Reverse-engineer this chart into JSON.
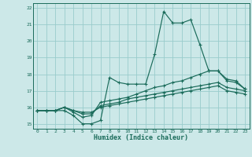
{
  "xlabel": "Humidex (Indice chaleur)",
  "bg_color": "#cce8e8",
  "grid_color": "#99cccc",
  "line_color": "#1a6b5a",
  "xlim": [
    -0.5,
    23.5
  ],
  "ylim": [
    14.7,
    22.3
  ],
  "xticks": [
    0,
    1,
    2,
    3,
    4,
    5,
    6,
    7,
    8,
    9,
    10,
    11,
    12,
    13,
    14,
    15,
    16,
    17,
    18,
    19,
    20,
    21,
    22,
    23
  ],
  "yticks": [
    15,
    16,
    17,
    18,
    19,
    20,
    21,
    22
  ],
  "lines": [
    {
      "x": [
        0,
        1,
        2,
        3,
        4,
        5,
        6,
        7,
        8,
        9,
        10,
        11,
        12,
        13,
        14,
        15,
        16,
        17,
        18,
        19,
        20,
        21,
        22,
        23
      ],
      "y": [
        15.8,
        15.8,
        15.8,
        15.8,
        15.5,
        15.0,
        15.0,
        15.2,
        17.8,
        17.5,
        17.4,
        17.4,
        17.4,
        19.2,
        21.8,
        21.1,
        21.1,
        21.3,
        19.8,
        18.2,
        18.2,
        17.6,
        17.5,
        17.1
      ]
    },
    {
      "x": [
        0,
        1,
        2,
        3,
        4,
        5,
        6,
        7,
        8,
        9,
        10,
        11,
        12,
        13,
        14,
        15,
        16,
        17,
        18,
        19,
        20,
        21,
        22,
        23
      ],
      "y": [
        15.8,
        15.8,
        15.8,
        16.0,
        15.7,
        15.4,
        15.5,
        16.3,
        16.4,
        16.5,
        16.6,
        16.8,
        17.0,
        17.2,
        17.3,
        17.5,
        17.6,
        17.8,
        18.0,
        18.2,
        18.2,
        17.7,
        17.6,
        17.1
      ]
    },
    {
      "x": [
        0,
        1,
        2,
        3,
        4,
        5,
        6,
        7,
        8,
        9,
        10,
        11,
        12,
        13,
        14,
        15,
        16,
        17,
        18,
        19,
        20,
        21,
        22,
        23
      ],
      "y": [
        15.8,
        15.8,
        15.8,
        16.0,
        15.8,
        15.6,
        15.6,
        16.1,
        16.2,
        16.3,
        16.5,
        16.6,
        16.7,
        16.8,
        16.9,
        17.0,
        17.1,
        17.2,
        17.3,
        17.4,
        17.5,
        17.2,
        17.1,
        17.0
      ]
    },
    {
      "x": [
        0,
        1,
        2,
        3,
        4,
        5,
        6,
        7,
        8,
        9,
        10,
        11,
        12,
        13,
        14,
        15,
        16,
        17,
        18,
        19,
        20,
        21,
        22,
        23
      ],
      "y": [
        15.8,
        15.8,
        15.8,
        16.0,
        15.8,
        15.7,
        15.7,
        16.0,
        16.1,
        16.2,
        16.3,
        16.4,
        16.5,
        16.6,
        16.7,
        16.8,
        16.9,
        17.0,
        17.1,
        17.2,
        17.3,
        17.0,
        16.9,
        16.8
      ]
    }
  ]
}
